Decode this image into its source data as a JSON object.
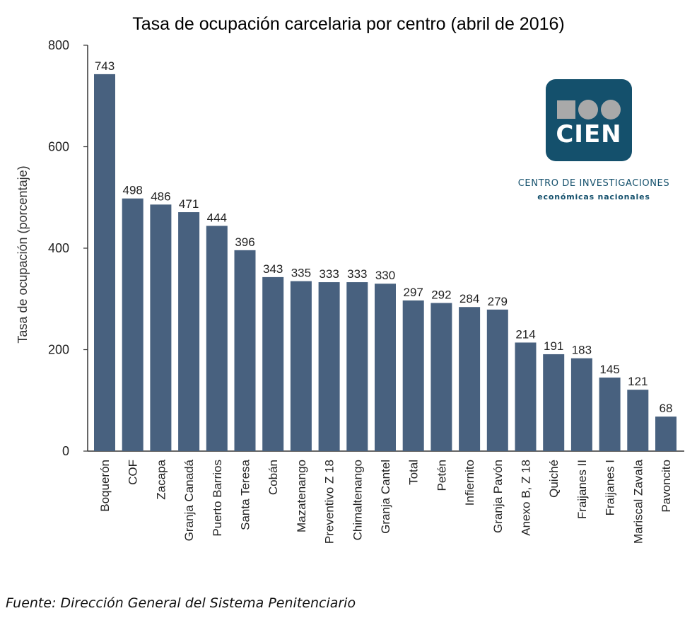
{
  "chart_data": {
    "type": "bar",
    "title": "Tasa de ocupación carcelaria por centro (abril de 2016)",
    "xlabel": "",
    "ylabel": "Tasa de ocupación (porcentaje)",
    "ylim": [
      0,
      800
    ],
    "yticks": [
      0,
      200,
      400,
      600,
      800
    ],
    "grid": false,
    "bar_color": "#48617f",
    "categories": [
      "Boquerón",
      "COF",
      "Zacapa",
      "Granja Canadá",
      "Puerto Barrios",
      "Santa Teresa",
      "Cobán",
      "Mazatenango",
      "Preventivo Z 18",
      "Chimaltenango",
      "Granja Cantel",
      "Total",
      "Petén",
      "Infiernito",
      "Granja Pavón",
      "Anexo B, Z 18",
      "Quiché",
      "Fraijanes II",
      "Fraijanes I",
      "Mariscal Zavala",
      "Pavoncito"
    ],
    "values": [
      743,
      498,
      486,
      471,
      444,
      396,
      343,
      335,
      333,
      333,
      330,
      297,
      292,
      284,
      279,
      214,
      191,
      183,
      145,
      121,
      68
    ]
  },
  "logo": {
    "acronym": "CIEN",
    "name": "CENTRO DE INVESTIGACIONES",
    "subtitle": "económicas nacionales",
    "color": "#14506c"
  },
  "source": "Fuente: Dirección General del Sistema Penitenciario"
}
